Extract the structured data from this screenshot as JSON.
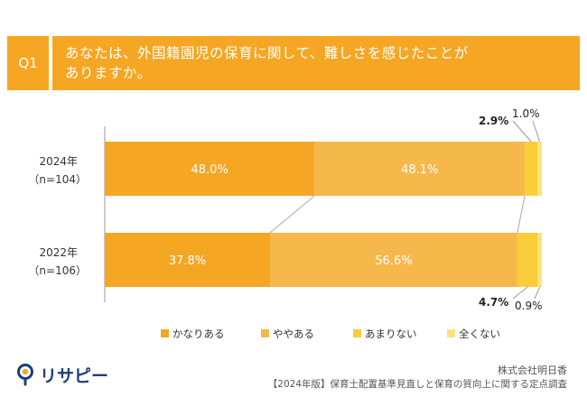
{
  "question": {
    "badge": "Q1",
    "line1": "あなたは、外国籍園児の保育に関して、難しさを感じたことが",
    "line2": "ありますか。"
  },
  "chart_data": {
    "type": "bar",
    "orientation": "horizontal",
    "stacked": true,
    "percent": true,
    "categories": [
      {
        "year": "2024年",
        "n": "（n=104）"
      },
      {
        "year": "2022年",
        "n": "（n=106）"
      }
    ],
    "series": [
      {
        "name": "かなりある",
        "color": "#f5a623",
        "values": [
          48.0,
          37.8
        ],
        "labels": [
          "48.0%",
          "37.8%"
        ]
      },
      {
        "name": "ややある",
        "color": "#f7b84b",
        "values": [
          48.1,
          56.6
        ],
        "labels": [
          "48.1%",
          "56.6%"
        ]
      },
      {
        "name": "あまりない",
        "color": "#f9cd3a",
        "values": [
          2.9,
          4.7
        ],
        "labels": [
          "2.9%",
          "4.7%"
        ]
      },
      {
        "name": "全くない",
        "color": "#fbe37a",
        "values": [
          1.0,
          0.9
        ],
        "labels": [
          "1.0%",
          "0.9%"
        ]
      }
    ],
    "xlim": [
      0,
      100
    ],
    "legend_position": "bottom"
  },
  "colors": {
    "accent": "#f5a623",
    "connector": "#aaaaaa",
    "axis": "#999999"
  },
  "footer": {
    "logo_text": "リサピー",
    "company": "株式会社明日香",
    "survey": "【2024年版】保育士配置基準見直しと保育の質向上に関する定点調査"
  }
}
